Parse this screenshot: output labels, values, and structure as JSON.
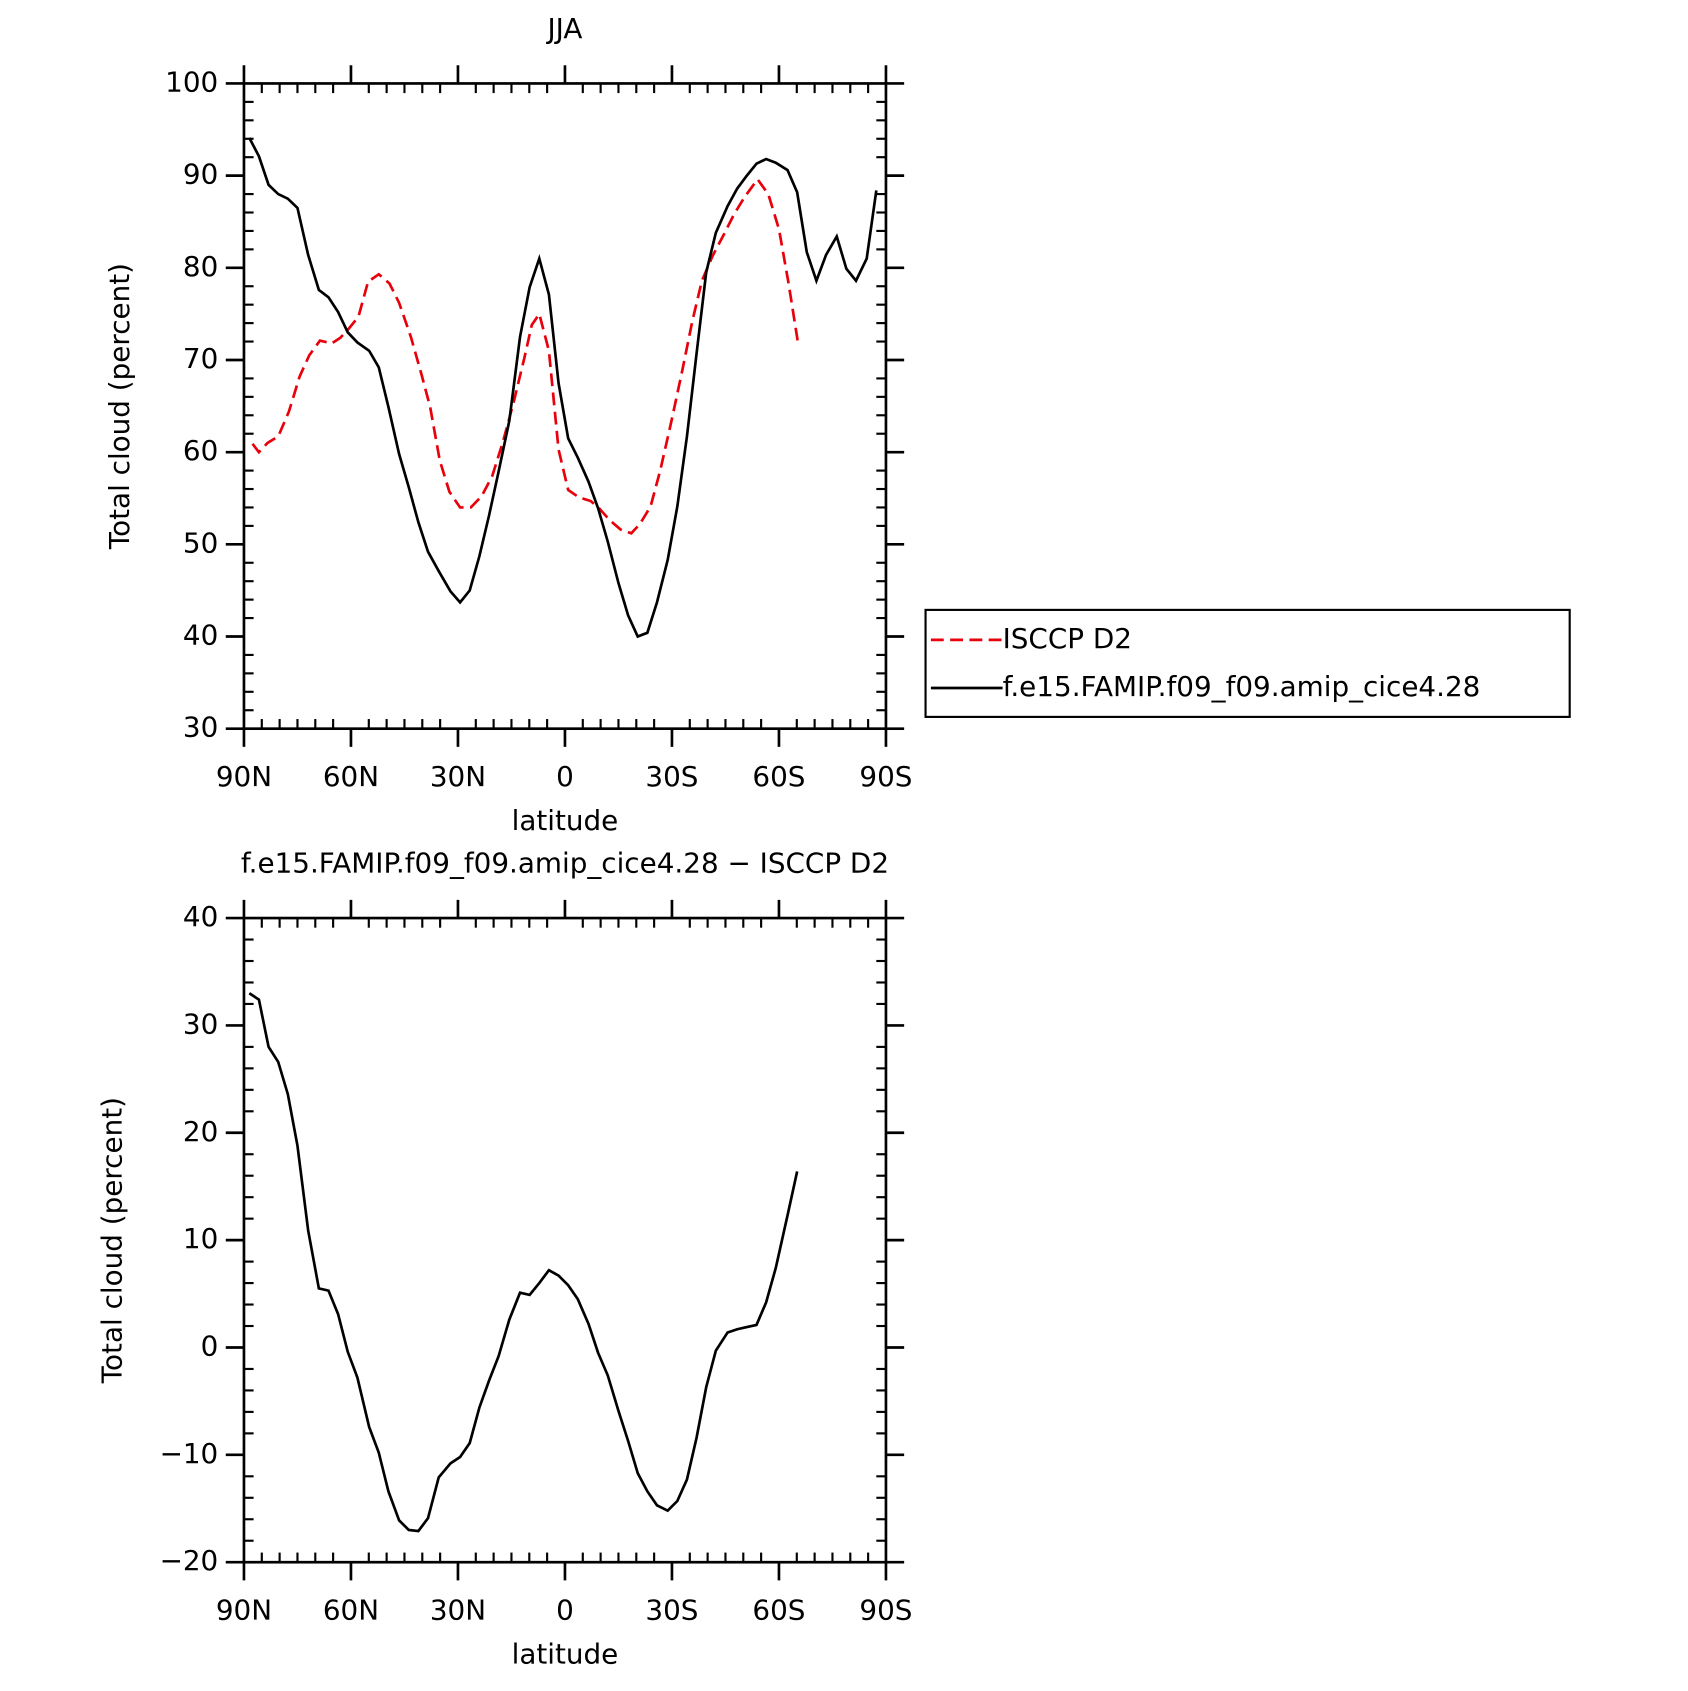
{
  "chart_data": [
    {
      "type": "line",
      "title": "JJA",
      "xlabel": "latitude",
      "ylabel": "Total cloud (percent)",
      "xlim": [
        90,
        -90
      ],
      "xticks": [
        {
          "value": 90,
          "label": "90N"
        },
        {
          "value": 60,
          "label": "60N"
        },
        {
          "value": 30,
          "label": "30N"
        },
        0,
        {
          "value": -30,
          "label": "30S"
        },
        {
          "value": -60,
          "label": "60S"
        },
        {
          "value": -90,
          "label": "90S"
        }
      ],
      "ylim": [
        30,
        100
      ],
      "yticks": [
        30,
        40,
        50,
        60,
        70,
        80,
        90,
        100
      ],
      "legend": "right",
      "series": [
        {
          "name": "ISCCP D2",
          "color": "#e8000b",
          "dash": true,
          "x": [
            87.6,
            85.8,
            83.4,
            80.4,
            77.4,
            74.4,
            71.7,
            68.7,
            65.4,
            63,
            60.6,
            57.9,
            55.2,
            52.2,
            49.2,
            46.5,
            43.2,
            40.2,
            37.8,
            35.1,
            32.4,
            29.4,
            26.4,
            23.4,
            20.4,
            17.4,
            14.4,
            11.4,
            9.3,
            7.2,
            4.5,
            1.8,
            -0.9,
            -3.9,
            -7.2,
            -9.6,
            -12.6,
            -15.6,
            -18.6,
            -21,
            -24,
            -26.7,
            -29.7,
            -32.7,
            -35.7,
            -38.4,
            -41.4,
            -44.4,
            -47.4,
            -50.4,
            -54,
            -57,
            -60,
            -62.7,
            -65.4
          ],
          "values": [
            60.9,
            60.0,
            61.0,
            61.7,
            64.4,
            68.2,
            70.5,
            72.1,
            71.8,
            72.4,
            73.4,
            74.7,
            78.5,
            79.3,
            78.3,
            76.2,
            72.5,
            68.4,
            64.9,
            59.1,
            55.7,
            54.0,
            54.0,
            55.2,
            57.4,
            61.1,
            65.4,
            70.2,
            73.8,
            75.0,
            71.0,
            60.3,
            55.9,
            55.1,
            54.7,
            53.9,
            52.6,
            51.6,
            51.2,
            52.2,
            54.1,
            58.0,
            63.1,
            68.5,
            74.2,
            78.6,
            81.3,
            83.5,
            85.8,
            87.7,
            89.6,
            88.0,
            84.2,
            78.3,
            71.7
          ]
        },
        {
          "name": "f.e15.FAMIP.f09_f09.amip_cice4.28",
          "color": "#000000",
          "dash": false,
          "x": [
            88.5,
            85.8,
            83.1,
            80.4,
            77.7,
            75,
            72,
            69,
            66.3,
            63.6,
            60.9,
            58.2,
            54.9,
            52.2,
            49.5,
            46.5,
            43.8,
            41.1,
            38.4,
            35.4,
            32.1,
            29.4,
            26.7,
            24,
            21.3,
            18.6,
            15.6,
            12.6,
            9.9,
            7.2,
            4.5,
            1.8,
            -0.9,
            -3.6,
            -6.6,
            -9.3,
            -12,
            -15,
            -17.7,
            -20.4,
            -23.1,
            -25.8,
            -28.8,
            -31.5,
            -34.2,
            -36.9,
            -39.6,
            -42.3,
            -45.6,
            -48.3,
            -51,
            -53.7,
            -56.4,
            -59.1,
            -62.4,
            -65.1,
            -67.8,
            -70.5,
            -73.2,
            -76.2,
            -78.9,
            -81.6,
            -84.6,
            -87.3
          ],
          "values": [
            94.1,
            92.1,
            89.0,
            88.0,
            87.5,
            86.5,
            81.4,
            77.6,
            76.8,
            75.2,
            73.0,
            71.9,
            71.0,
            69.2,
            64.9,
            59.8,
            56.2,
            52.4,
            49.2,
            47.1,
            44.9,
            43.7,
            45.0,
            48.7,
            53.1,
            57.9,
            63.4,
            72.5,
            77.9,
            81.0,
            77.1,
            67.5,
            61.5,
            59.4,
            56.8,
            53.9,
            50.3,
            45.8,
            42.3,
            40.0,
            40.4,
            43.7,
            48.3,
            54.1,
            61.7,
            70.7,
            79.5,
            83.8,
            86.7,
            88.6,
            90.0,
            91.3,
            91.8,
            91.4,
            90.6,
            88.2,
            81.7,
            78.6,
            81.4,
            83.4,
            79.9,
            78.6,
            81.0,
            88.4
          ]
        }
      ]
    },
    {
      "type": "line",
      "title": "f.e15.FAMIP.f09_f09.amip_cice4.28 − ISCCP D2",
      "xlabel": "latitude",
      "ylabel": "Total cloud (percent)",
      "xlim": [
        90,
        -90
      ],
      "xticks": [
        {
          "value": 90,
          "label": "90N"
        },
        {
          "value": 60,
          "label": "60N"
        },
        {
          "value": 30,
          "label": "30N"
        },
        0,
        {
          "value": -30,
          "label": "30S"
        },
        {
          "value": -60,
          "label": "60S"
        },
        {
          "value": -90,
          "label": "90S"
        }
      ],
      "ylim": [
        -20,
        40
      ],
      "yticks": [
        {
          "value": -20,
          "label": "−20"
        },
        {
          "value": -10,
          "label": "−10"
        },
        0,
        10,
        20,
        30,
        40
      ],
      "series": [
        {
          "color": "#000000",
          "dash": false,
          "x": [
            88.5,
            85.8,
            83.1,
            80.4,
            77.7,
            75,
            72,
            69,
            66.3,
            63.6,
            60.9,
            58.2,
            54.9,
            52.2,
            49.5,
            46.5,
            43.8,
            41.1,
            38.4,
            35.4,
            32.1,
            29.4,
            26.7,
            24,
            21.3,
            18.6,
            15.6,
            12.6,
            9.9,
            7.2,
            4.5,
            1.8,
            -0.9,
            -3.6,
            -6.6,
            -9.3,
            -12,
            -15,
            -17.7,
            -20.4,
            -23.1,
            -25.8,
            -28.8,
            -31.5,
            -34.2,
            -36.9,
            -39.6,
            -42.3,
            -45.6,
            -48.3,
            -51,
            -53.7,
            -56.4,
            -59.1,
            -62.4,
            -65.1
          ],
          "values": [
            33.0,
            32.4,
            28.0,
            26.6,
            23.6,
            18.8,
            10.9,
            5.5,
            5.3,
            3.1,
            -0.4,
            -2.8,
            -7.4,
            -9.8,
            -13.4,
            -16.1,
            -17.0,
            -17.1,
            -15.9,
            -12.1,
            -10.8,
            -10.2,
            -8.9,
            -5.6,
            -3.1,
            -0.8,
            2.6,
            5.1,
            4.9,
            6.0,
            7.2,
            6.7,
            5.8,
            4.5,
            2.2,
            -0.5,
            -2.6,
            -5.9,
            -8.7,
            -11.7,
            -13.4,
            -14.7,
            -15.2,
            -14.3,
            -12.3,
            -8.4,
            -3.7,
            -0.3,
            1.4,
            1.7,
            1.9,
            2.1,
            4.2,
            7.4,
            12.3,
            16.4
          ]
        }
      ]
    }
  ]
}
